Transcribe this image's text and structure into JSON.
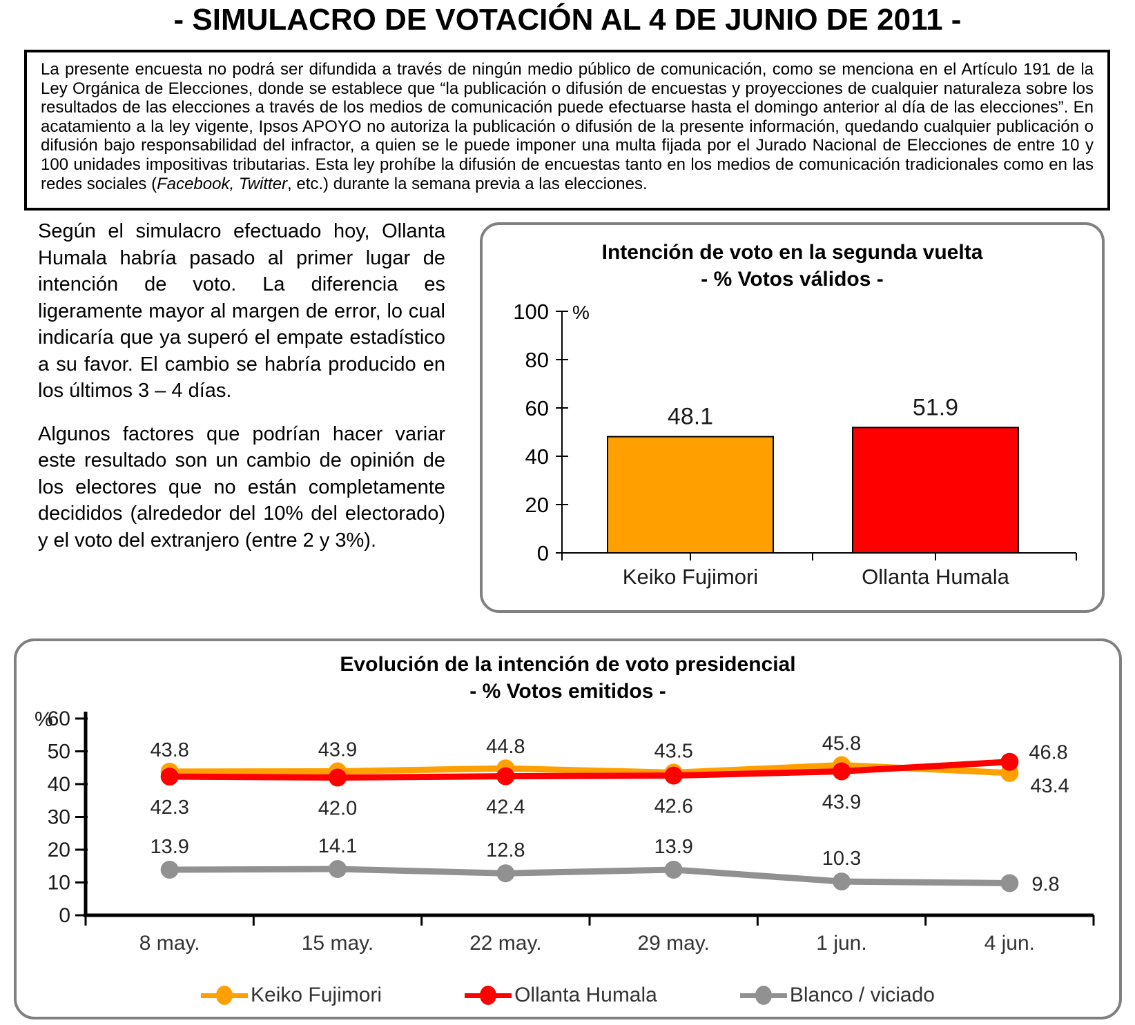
{
  "page_title": "- SIMULACRO DE VOTACIÓN AL 4 DE JUNIO DE 2011 -",
  "disclaimer": {
    "text_main": "La presente encuesta no podrá ser difundida a través de ningún medio público de comunicación, como se menciona en el Artículo 191 de la Ley Orgánica de Elecciones, donde se establece que “la publicación o difusión de encuestas y proyecciones de cualquier naturaleza sobre los resultados de las elecciones a través de los medios de comunicación puede efectuarse hasta el domingo anterior al día de las elecciones”. En acatamiento a la ley vigente, Ipsos APOYO no autoriza la publicación o difusión de la presente información, quedando cualquier publicación o difusión bajo responsabilidad del infractor, a quien se le puede imponer una multa fijada por el Jurado Nacional de Elecciones de entre 10 y 100 unidades impositivas tributarias. Esta ley prohíbe la difusión de encuestas tanto en los medios de comunicación tradicionales como en las redes sociales (",
    "italic_text": "Facebook, Twitter",
    "text_end": ", etc.) durante la semana previa a las elecciones."
  },
  "commentary": {
    "paragraph_1": "Según el simulacro efectuado hoy, Ollanta Humala habría pasado al primer lugar de intención de voto. La diferencia es ligeramente mayor al margen de error, lo cual indicaría que ya superó el empate estadístico a su favor. El cambio se habría producido en los últimos 3 – 4 días.",
    "paragraph_2": "Algunos factores que podrían hacer variar este resultado son un cambio de opinión de los electores que no están completamente decididos (alrededor del 10% del electorado) y el voto del extranjero (entre 2 y 3%)."
  },
  "chart_data": [
    {
      "type": "bar",
      "title": "Intención de voto en la segunda vuelta",
      "subtitle": "- % Votos válidos -",
      "unit_label": "%",
      "categories": [
        "Keiko Fujimori",
        "Ollanta Humala"
      ],
      "values": [
        48.1,
        51.9
      ],
      "colors": [
        "#FFA000",
        "#FF0000"
      ],
      "ylim": [
        0,
        100
      ],
      "yticks": [
        0,
        20,
        40,
        60,
        80,
        100
      ],
      "grid": false
    },
    {
      "type": "line",
      "title": "Evolución de la intención de voto presidencial",
      "subtitle": "- % Votos emitidos -",
      "unit_label": "%",
      "categories": [
        "8 may.",
        "15 may.",
        "22 may.",
        "29 may.",
        "1 jun.",
        "4 jun."
      ],
      "series": [
        {
          "name": "Keiko Fujimori",
          "color": "#FFA000",
          "values": [
            43.8,
            43.9,
            44.8,
            43.5,
            45.8,
            43.4
          ]
        },
        {
          "name": "Ollanta Humala",
          "color": "#FF0000",
          "values": [
            42.3,
            42.0,
            42.4,
            42.6,
            43.9,
            46.8
          ]
        },
        {
          "name": "Blanco / viciado",
          "color": "#919191",
          "values": [
            13.9,
            14.1,
            12.8,
            13.9,
            10.3,
            9.8
          ]
        }
      ],
      "ylim": [
        0,
        60
      ],
      "yticks": [
        0,
        10,
        20,
        30,
        40,
        50,
        60
      ],
      "grid": false,
      "legend_position": "bottom"
    }
  ],
  "colors": {
    "panel_border": "#808080",
    "keiko": "#FFA000",
    "ollanta": "#FF0000",
    "blanco": "#919191"
  }
}
